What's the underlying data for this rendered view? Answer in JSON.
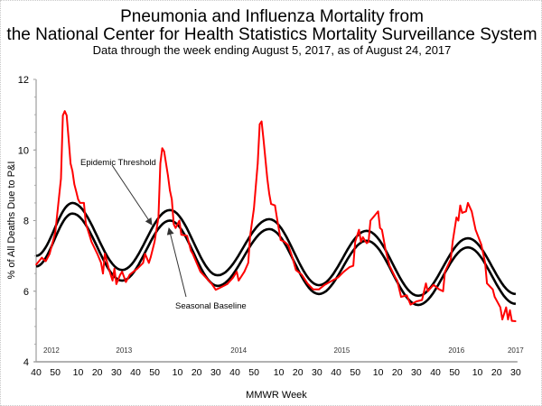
{
  "chart_data": {
    "type": "line",
    "title": "Pneumonia and Influenza Mortality from",
    "title_line2": "the National Center for Health Statistics Mortality Surveillance System",
    "subtitle": "Data through the week ending August 5, 2017, as of August 24, 2017",
    "xlabel": "MMWR Week",
    "ylabel": "% of All Deaths Due to P&I",
    "ylim": [
      4,
      12
    ],
    "yticks": [
      4,
      6,
      8,
      10,
      12
    ],
    "xlim": [
      "2012-40",
      "2017-30"
    ],
    "xticks": [
      {
        "at": "2012-40",
        "label": "40"
      },
      {
        "at": "2012-50",
        "label": "50"
      },
      {
        "at": "2013-10",
        "label": "10"
      },
      {
        "at": "2013-20",
        "label": "20"
      },
      {
        "at": "2013-30",
        "label": "30"
      },
      {
        "at": "2013-40",
        "label": "40"
      },
      {
        "at": "2013-50",
        "label": "50"
      },
      {
        "at": "2014-10",
        "label": "10"
      },
      {
        "at": "2014-20",
        "label": "20"
      },
      {
        "at": "2014-30",
        "label": "30"
      },
      {
        "at": "2014-40",
        "label": "40"
      },
      {
        "at": "2014-50",
        "label": "50"
      },
      {
        "at": "2015-10",
        "label": "10"
      },
      {
        "at": "2015-20",
        "label": "20"
      },
      {
        "at": "2015-30",
        "label": "30"
      },
      {
        "at": "2015-40",
        "label": "40"
      },
      {
        "at": "2015-50",
        "label": "50"
      },
      {
        "at": "2016-10",
        "label": "10"
      },
      {
        "at": "2016-20",
        "label": "20"
      },
      {
        "at": "2016-30",
        "label": "30"
      },
      {
        "at": "2016-40",
        "label": "40"
      },
      {
        "at": "2016-50",
        "label": "50"
      },
      {
        "at": "2017-10",
        "label": "10"
      },
      {
        "at": "2017-20",
        "label": "20"
      },
      {
        "at": "2017-30",
        "label": "30"
      }
    ],
    "year_labels": [
      {
        "at": "2012-48",
        "label": "2012"
      },
      {
        "at": "2013-34",
        "label": "2013"
      },
      {
        "at": "2014-42",
        "label": "2014"
      },
      {
        "at": "2015-43",
        "label": "2015"
      },
      {
        "at": "2016-51",
        "label": "2016"
      },
      {
        "at": "2017-30",
        "label": "2017"
      }
    ],
    "grid": false,
    "legend": "none",
    "annotations": [
      {
        "label": "Epidemic Threshold",
        "points_to": "epidemic_threshold"
      },
      {
        "label": "Seasonal Baseline",
        "points_to": "seasonal_baseline"
      }
    ],
    "series": [
      {
        "key": "pi",
        "color": "#ff0000",
        "points": [
          [
            "2012-40",
            6.75
          ],
          [
            "2012-43",
            6.95
          ],
          [
            "2012-45",
            6.85
          ],
          [
            "2012-47",
            7.05
          ],
          [
            "2012-50",
            7.66
          ],
          [
            "2013-01",
            9.19
          ],
          [
            "2013-02",
            10.98
          ],
          [
            "2013-03",
            11.1
          ],
          [
            "2013-04",
            10.98
          ],
          [
            "2013-05",
            10.3
          ],
          [
            "2013-06",
            9.62
          ],
          [
            "2013-07",
            9.4
          ],
          [
            "2013-08",
            9.03
          ],
          [
            "2013-09",
            8.82
          ],
          [
            "2013-10",
            8.6
          ],
          [
            "2013-11",
            8.5
          ],
          [
            "2013-13",
            8.5
          ],
          [
            "2013-14",
            7.92
          ],
          [
            "2013-17",
            7.4
          ],
          [
            "2013-20",
            7.06
          ],
          [
            "2013-22",
            6.8
          ],
          [
            "2013-23",
            6.5
          ],
          [
            "2013-24",
            7.06
          ],
          [
            "2013-26",
            6.64
          ],
          [
            "2013-28",
            6.3
          ],
          [
            "2013-29",
            6.64
          ],
          [
            "2013-30",
            6.2
          ],
          [
            "2013-32",
            6.47
          ],
          [
            "2013-33",
            6.55
          ],
          [
            "2013-35",
            6.26
          ],
          [
            "2013-37",
            6.47
          ],
          [
            "2013-41",
            6.64
          ],
          [
            "2013-44",
            6.8
          ],
          [
            "2013-45",
            7.06
          ],
          [
            "2013-47",
            6.8
          ],
          [
            "2013-48",
            6.97
          ],
          [
            "2013-50",
            7.4
          ],
          [
            "2013-52",
            8.09
          ],
          [
            "2014-01",
            9.62
          ],
          [
            "2014-02",
            10.05
          ],
          [
            "2014-03",
            9.96
          ],
          [
            "2014-05",
            9.28
          ],
          [
            "2014-06",
            8.85
          ],
          [
            "2014-07",
            8.6
          ],
          [
            "2014-08",
            7.9
          ],
          [
            "2014-09",
            7.79
          ],
          [
            "2014-11",
            8.0
          ],
          [
            "2014-12",
            7.6
          ],
          [
            "2014-15",
            7.57
          ],
          [
            "2014-17",
            7.15
          ],
          [
            "2014-18",
            7.06
          ],
          [
            "2014-20",
            6.8
          ],
          [
            "2014-22",
            6.55
          ],
          [
            "2014-25",
            6.38
          ],
          [
            "2014-28",
            6.2
          ],
          [
            "2014-30",
            6.04
          ],
          [
            "2014-33",
            6.12
          ],
          [
            "2014-36",
            6.2
          ],
          [
            "2014-39",
            6.38
          ],
          [
            "2014-41",
            6.55
          ],
          [
            "2014-42",
            6.3
          ],
          [
            "2014-45",
            6.55
          ],
          [
            "2014-47",
            6.8
          ],
          [
            "2014-48",
            7.57
          ],
          [
            "2014-50",
            8.34
          ],
          [
            "2014-52",
            9.62
          ],
          [
            "2014-53",
            10.73
          ],
          [
            "2015-01",
            10.81
          ],
          [
            "2015-02",
            10.3
          ],
          [
            "2015-04",
            9.19
          ],
          [
            "2015-05",
            8.77
          ],
          [
            "2015-06",
            8.47
          ],
          [
            "2015-08",
            8.43
          ],
          [
            "2015-09",
            8.09
          ],
          [
            "2015-11",
            7.45
          ],
          [
            "2015-13",
            7.4
          ],
          [
            "2015-15",
            7.3
          ],
          [
            "2015-17",
            6.98
          ],
          [
            "2015-19",
            6.6
          ],
          [
            "2015-22",
            6.47
          ],
          [
            "2015-25",
            6.22
          ],
          [
            "2015-28",
            6.05
          ],
          [
            "2015-31",
            6.05
          ],
          [
            "2015-34",
            6.18
          ],
          [
            "2015-38",
            6.3
          ],
          [
            "2015-41",
            6.39
          ],
          [
            "2015-44",
            6.55
          ],
          [
            "2015-47",
            6.68
          ],
          [
            "2015-49",
            6.72
          ],
          [
            "2015-50",
            7.4
          ],
          [
            "2015-52",
            7.74
          ],
          [
            "2016-01",
            7.4
          ],
          [
            "2016-02",
            7.53
          ],
          [
            "2016-04",
            7.36
          ],
          [
            "2016-05",
            7.4
          ],
          [
            "2016-06",
            8.0
          ],
          [
            "2016-08",
            8.13
          ],
          [
            "2016-10",
            8.26
          ],
          [
            "2016-11",
            7.79
          ],
          [
            "2016-12",
            7.74
          ],
          [
            "2016-14",
            7.15
          ],
          [
            "2016-16",
            6.72
          ],
          [
            "2016-19",
            6.39
          ],
          [
            "2016-20",
            6.3
          ],
          [
            "2016-22",
            5.84
          ],
          [
            "2016-25",
            5.88
          ],
          [
            "2016-27",
            5.62
          ],
          [
            "2016-30",
            5.71
          ],
          [
            "2016-33",
            5.75
          ],
          [
            "2016-35",
            6.22
          ],
          [
            "2016-36",
            6.0
          ],
          [
            "2016-39",
            6.18
          ],
          [
            "2016-42",
            6.05
          ],
          [
            "2016-44",
            6.0
          ],
          [
            "2016-45",
            6.55
          ],
          [
            "2016-48",
            6.9
          ],
          [
            "2016-49",
            7.4
          ],
          [
            "2016-51",
            8.09
          ],
          [
            "2016-52",
            8.0
          ],
          [
            "2017-01",
            8.43
          ],
          [
            "2017-02",
            8.22
          ],
          [
            "2017-04",
            8.26
          ],
          [
            "2017-05",
            8.5
          ],
          [
            "2017-07",
            8.26
          ],
          [
            "2017-09",
            7.74
          ],
          [
            "2017-12",
            7.32
          ],
          [
            "2017-14",
            6.81
          ],
          [
            "2017-15",
            6.22
          ],
          [
            "2017-18",
            6.05
          ],
          [
            "2017-19",
            5.84
          ],
          [
            "2017-22",
            5.54
          ],
          [
            "2017-23",
            5.2
          ],
          [
            "2017-25",
            5.54
          ],
          [
            "2017-26",
            5.2
          ],
          [
            "2017-27",
            5.46
          ],
          [
            "2017-28",
            5.16
          ],
          [
            "2017-30",
            5.15
          ]
        ]
      },
      {
        "key": "epidemic_threshold",
        "name": "Epidemic Threshold",
        "color": "#000000",
        "points": [
          [
            "2012-40",
            7.0
          ],
          [
            "2013-07",
            8.5
          ],
          [
            "2013-33",
            6.6
          ],
          [
            "2014-06",
            8.3
          ],
          [
            "2014-31",
            6.45
          ],
          [
            "2015-05",
            8.04
          ],
          [
            "2015-31",
            6.17
          ],
          [
            "2016-04",
            7.71
          ],
          [
            "2016-31",
            5.87
          ],
          [
            "2017-05",
            7.5
          ],
          [
            "2017-30",
            5.92
          ]
        ]
      },
      {
        "key": "seasonal_baseline",
        "name": "Seasonal Baseline",
        "color": "#000000",
        "points": [
          [
            "2012-40",
            6.7
          ],
          [
            "2013-07",
            8.2
          ],
          [
            "2013-33",
            6.3
          ],
          [
            "2014-06",
            8.0
          ],
          [
            "2014-31",
            6.15
          ],
          [
            "2015-05",
            7.76
          ],
          [
            "2015-31",
            5.92
          ],
          [
            "2016-04",
            7.43
          ],
          [
            "2016-31",
            5.61
          ],
          [
            "2017-05",
            7.24
          ],
          [
            "2017-30",
            5.64
          ]
        ]
      }
    ]
  }
}
